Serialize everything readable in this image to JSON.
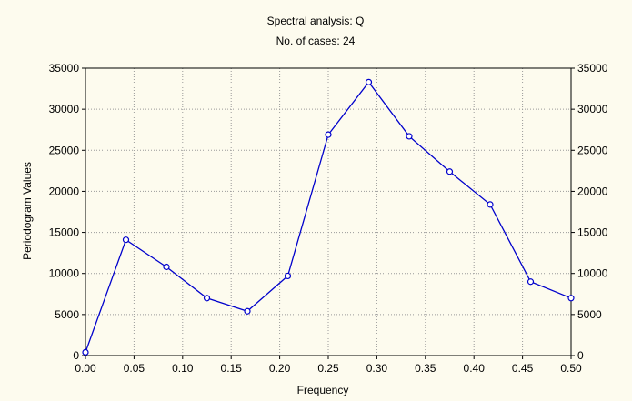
{
  "chart_data": {
    "type": "line",
    "title": "Spectral analysis: Q",
    "subtitle": "No. of cases: 24",
    "xlabel": "Frequency",
    "ylabel": "Periodogram Values",
    "xlim": [
      0,
      0.5
    ],
    "ylim": [
      0,
      35000
    ],
    "grid": true,
    "x_ticks": [
      "0.00",
      "0.05",
      "0.10",
      "0.15",
      "0.20",
      "0.25",
      "0.30",
      "0.35",
      "0.40",
      "0.45",
      "0.50"
    ],
    "y_ticks": [
      "0",
      "5000",
      "10000",
      "15000",
      "20000",
      "25000",
      "30000",
      "35000"
    ],
    "series": [
      {
        "x": [
          0.0,
          0.04167,
          0.08333,
          0.125,
          0.16667,
          0.20833,
          0.25,
          0.29167,
          0.33333,
          0.375,
          0.41667,
          0.45833,
          0.5
        ],
        "values": [
          400,
          14100,
          10800,
          7000,
          5400,
          9700,
          26900,
          33300,
          26700,
          22400,
          18400,
          9000,
          7000
        ]
      }
    ],
    "colors": {
      "line": "#0000cc",
      "marker_fill": "#ffffff",
      "grid": "#9a9a9a",
      "axes": "#000000",
      "background": "#fdfbee"
    }
  }
}
